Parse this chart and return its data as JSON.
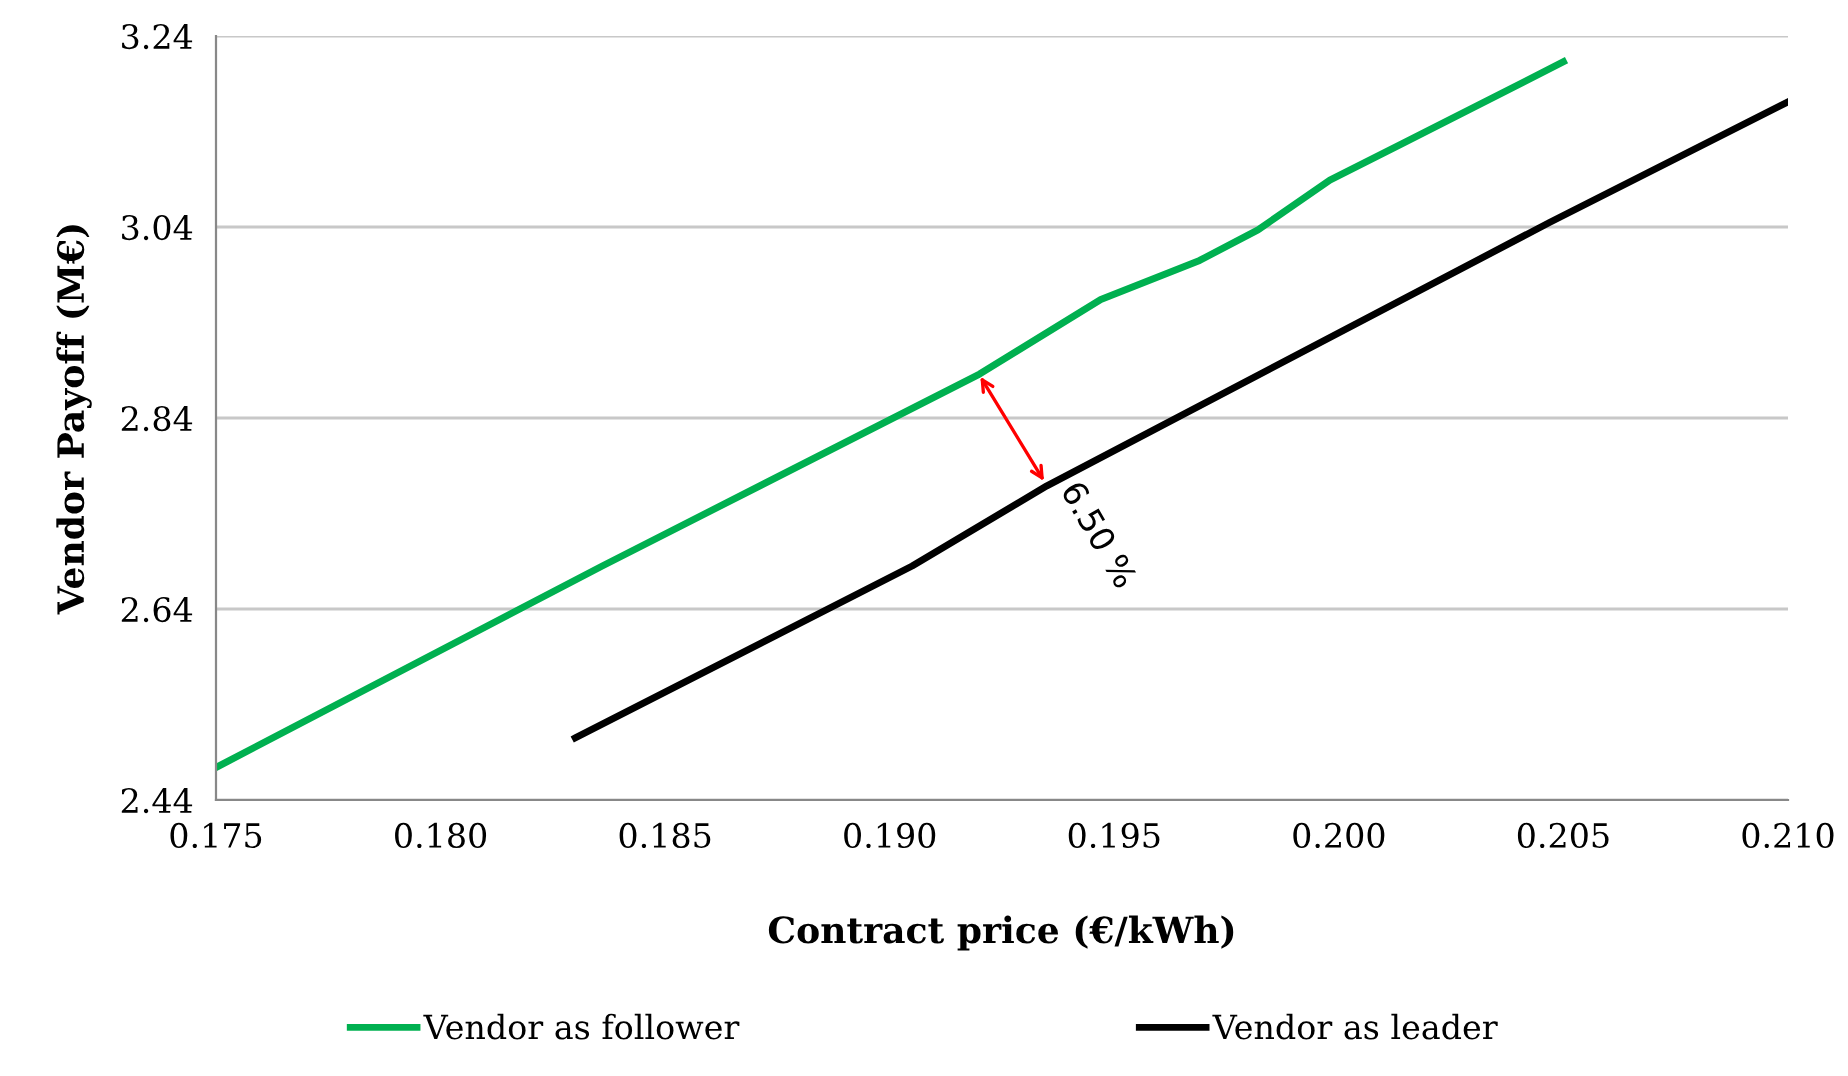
{
  "chart_data": {
    "type": "line",
    "xlabel": "Contract price (€/kWh)",
    "ylabel": "Vendor Payoff (M€)",
    "xlim": [
      0.175,
      0.21
    ],
    "xticks": [
      {
        "value": 0.175,
        "label": "0.175"
      },
      {
        "value": 0.18,
        "label": "0.180"
      },
      {
        "value": 0.185,
        "label": "0.185"
      },
      {
        "value": 0.19,
        "label": "0.190"
      },
      {
        "value": 0.195,
        "label": "0.195"
      },
      {
        "value": 0.2,
        "label": "0.200"
      },
      {
        "value": 0.205,
        "label": "0.205"
      },
      {
        "value": 0.21,
        "label": "0.210"
      }
    ],
    "ylim": [
      2.44,
      3.24
    ],
    "yticks": [
      2.44,
      2.64,
      2.84,
      3.04,
      3.24
    ],
    "grid": "y",
    "legend": "bottom",
    "marker": "none",
    "line_style": "solid",
    "series": [
      {
        "name": "Vendor as follower",
        "color": "#00b050",
        "x": [
          0.175,
          0.1836,
          0.192,
          0.1947,
          0.1969,
          0.1982,
          0.1998,
          0.2014,
          0.205
        ],
        "values": [
          2.474,
          2.685,
          2.886,
          2.964,
          3.005,
          3.037,
          3.089,
          3.127,
          3.213
        ]
      },
      {
        "name": "Vendor as leader",
        "color": "#000000",
        "x": [
          0.183,
          0.1905,
          0.1935,
          0.2047,
          0.21
        ],
        "values": [
          2.505,
          2.685,
          2.769,
          3.045,
          3.171
        ]
      }
    ],
    "annotations": [
      {
        "text": "6.50 %",
        "x": 0.1935,
        "y": 2.769
      }
    ]
  }
}
